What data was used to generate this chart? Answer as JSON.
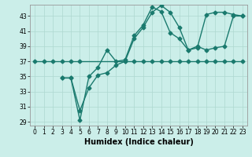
{
  "xlabel": "Humidex (Indice chaleur)",
  "ylabel": "",
  "bg_color": "#cbeee9",
  "line_color": "#1a7a6e",
  "grid_color": "#aed8d0",
  "xlim": [
    -0.5,
    23.5
  ],
  "ylim": [
    28.5,
    44.5
  ],
  "yticks": [
    29,
    31,
    33,
    35,
    37,
    39,
    41,
    43
  ],
  "xticks": [
    0,
    1,
    2,
    3,
    4,
    5,
    6,
    7,
    8,
    9,
    10,
    11,
    12,
    13,
    14,
    15,
    16,
    17,
    18,
    19,
    20,
    21,
    22,
    23
  ],
  "line1_x": [
    0,
    1,
    2,
    3,
    4,
    5,
    10,
    11,
    12,
    13,
    14,
    15,
    16,
    17,
    18,
    19,
    20,
    21,
    22,
    23
  ],
  "line1_y": [
    37.0,
    37.0,
    37.0,
    37.0,
    37.0,
    37.0,
    37.0,
    37.0,
    37.0,
    37.0,
    37.0,
    37.0,
    37.0,
    37.0,
    37.0,
    37.0,
    37.0,
    37.0,
    37.0,
    37.0
  ],
  "line2_x": [
    3,
    4,
    5,
    6,
    7,
    8,
    9,
    10,
    11,
    12,
    13,
    14,
    15,
    16,
    17,
    18,
    19,
    20,
    21,
    22,
    23
  ],
  "line2_y": [
    34.8,
    34.8,
    29.2,
    35.0,
    36.2,
    38.5,
    37.0,
    37.2,
    40.4,
    41.8,
    44.2,
    43.6,
    40.8,
    40.0,
    38.5,
    38.8,
    43.2,
    43.5,
    43.5,
    43.2,
    43.0
  ],
  "line3_x": [
    3,
    4,
    5,
    6,
    7,
    8,
    9,
    10,
    11,
    12,
    13,
    14,
    15,
    16,
    17,
    18,
    19,
    20,
    21,
    22,
    23
  ],
  "line3_y": [
    34.8,
    34.8,
    30.5,
    33.5,
    35.2,
    35.5,
    36.5,
    37.0,
    40.0,
    41.5,
    43.5,
    44.4,
    43.5,
    41.5,
    38.5,
    39.0,
    38.5,
    38.8,
    39.0,
    43.0,
    43.0
  ],
  "marker": "D",
  "markersize": 2.5,
  "linewidth": 1.0,
  "tick_fontsize": 5.5,
  "label_fontsize": 7.0,
  "label_fontweight": "bold"
}
